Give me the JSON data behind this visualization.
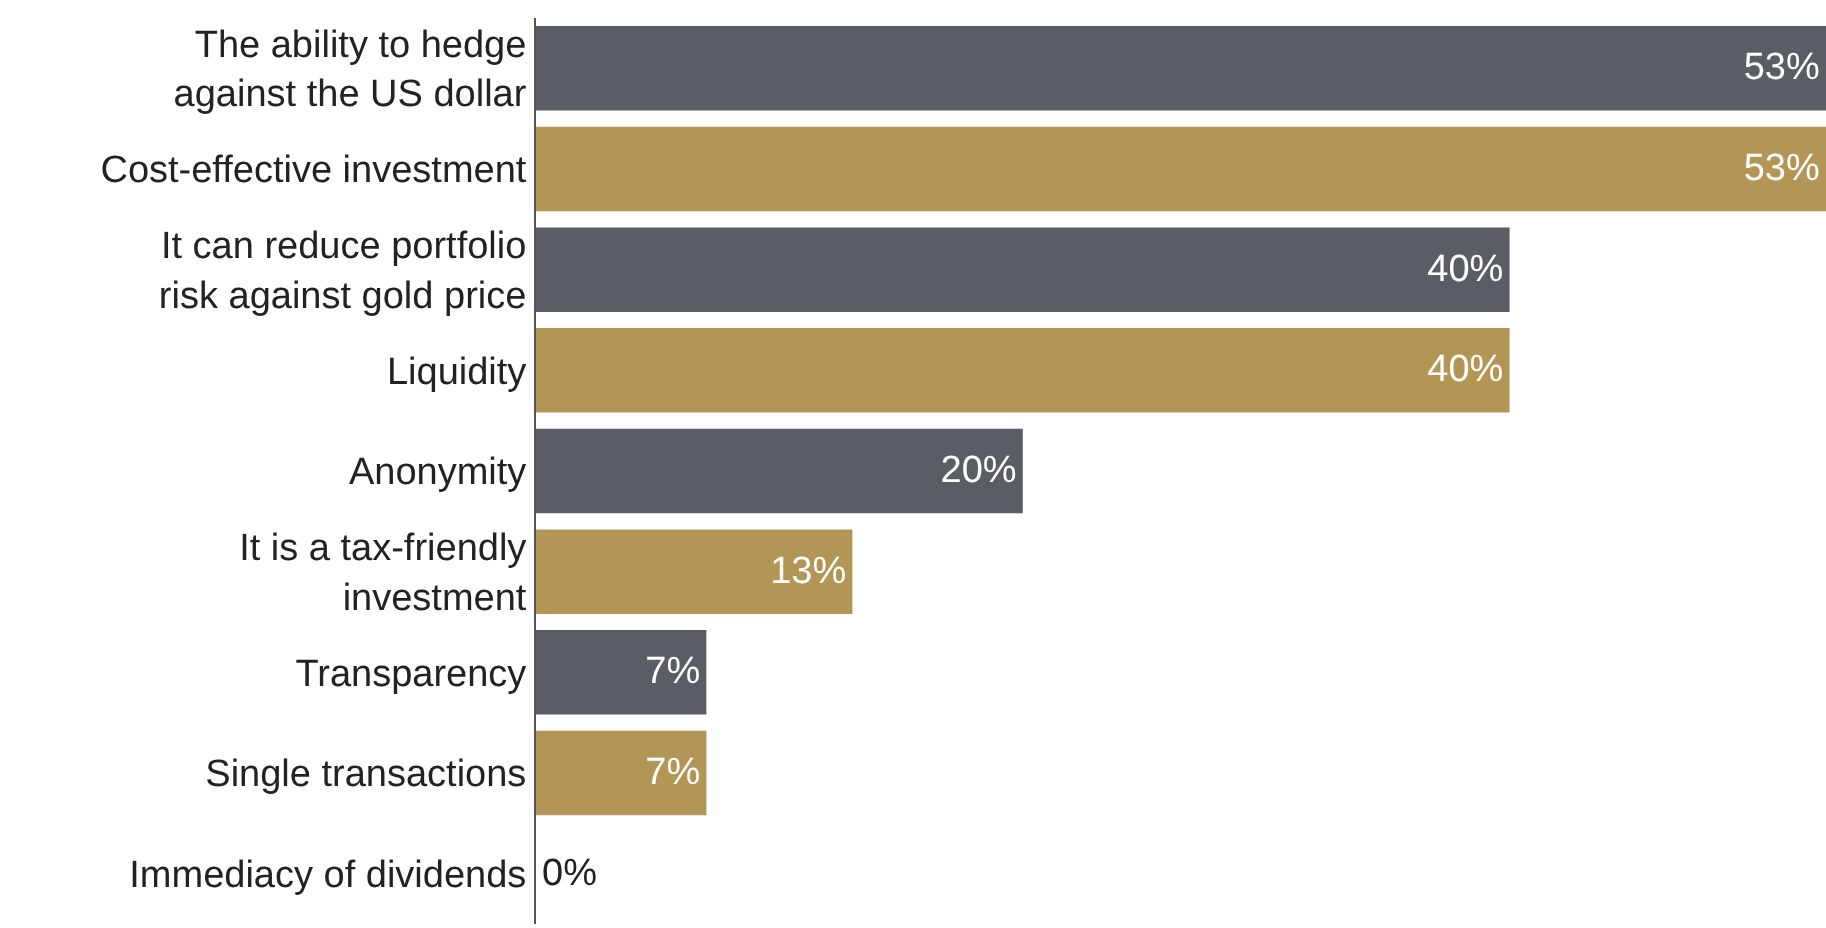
{
  "chart_data": {
    "type": "bar",
    "orientation": "horizontal",
    "categories": [
      "The ability to hedge against the US dollar",
      "Cost-effective investment",
      "It can reduce portfolio risk against gold price",
      "Liquidity",
      "Anonymity",
      "It is a tax-friendly investment",
      "Transparency",
      "Single transactions",
      "Immediacy of dividends"
    ],
    "values": [
      53,
      53,
      40,
      40,
      20,
      13,
      7,
      7,
      0
    ],
    "colors": [
      "#5a5d63",
      "#b39656",
      "#5a5d63",
      "#b39656",
      "#5a5d63",
      "#b39656",
      "#5a5d63",
      "#b39656",
      "#5a5d63"
    ],
    "value_labels": [
      "53%",
      "53%",
      "40%",
      "40%",
      "20%",
      "13%",
      "7%",
      "7%",
      "0%"
    ]
  }
}
